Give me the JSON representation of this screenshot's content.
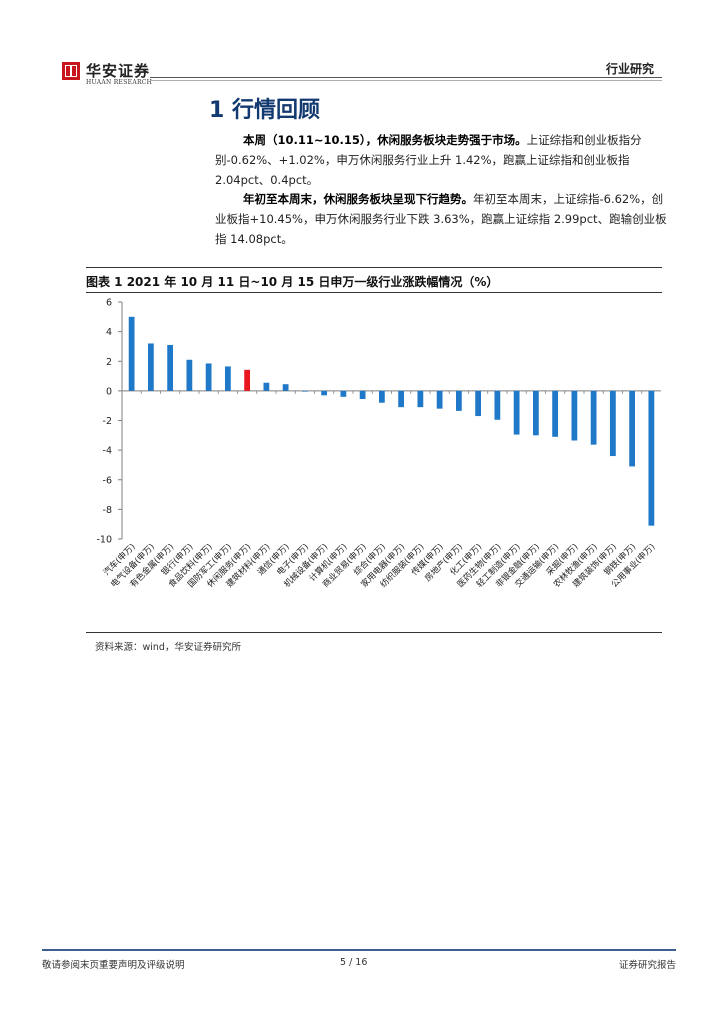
{
  "header": {
    "logo_cn": "华安证券",
    "logo_en": "HUAAN RESEARCH",
    "title": "行业研究"
  },
  "section": {
    "title": "1 行情回顾"
  },
  "paragraphs": [
    {
      "bold": "本周（10.11~10.15），休闲服务板块走势强于市场。",
      "text": "上证综指和创业板指分别-0.62%、+1.02%，申万休闲服务行业上升 1.42%，跑赢上证综指和创业板指 2.04pct、0.4pct。"
    },
    {
      "bold": "年初至本周末，休闲服务板块呈现下行趋势。",
      "text": "年初至本周末，上证综指-6.62%，创业板指+10.45%，申万休闲服务行业下跌 3.63%，跑赢上证综指 2.99pct、跑输创业板指 14.08pct。"
    }
  ],
  "figure": {
    "title": "图表 1 2021 年 10 月 11 日~10 月 15 日申万一级行业涨跌幅情况（%）",
    "source": "资料来源：wind，华安证券研究所"
  },
  "chart_data": {
    "type": "bar",
    "title": "2021 年 10 月 11 日~10 月 15 日申万一级行业涨跌幅情况（%）",
    "categories": [
      "汽车(申万)",
      "电气设备(申万)",
      "有色金属(申万)",
      "银行(申万)",
      "食品饮料(申万)",
      "国防军工(申万)",
      "休闲服务(申万)",
      "建筑材料(申万)",
      "通信(申万)",
      "电子(申万)",
      "机械设备(申万)",
      "计算机(申万)",
      "商业贸易(申万)",
      "综合(申万)",
      "家用电器(申万)",
      "纺织服装(申万)",
      "传媒(申万)",
      "房地产(申万)",
      "化工(申万)",
      "医药生物(申万)",
      "轻工制造(申万)",
      "非银金融(申万)",
      "交通运输(申万)",
      "采掘(申万)",
      "农林牧渔(申万)",
      "建筑装饰(申万)",
      "钢铁(申万)",
      "公用事业(申万)"
    ],
    "values": [
      5.0,
      3.2,
      3.1,
      2.1,
      1.85,
      1.65,
      1.42,
      0.55,
      0.45,
      -0.05,
      -0.3,
      -0.4,
      -0.55,
      -0.8,
      -1.1,
      -1.1,
      -1.2,
      -1.35,
      -1.7,
      -1.95,
      -2.95,
      -3.0,
      -3.1,
      -3.35,
      -3.63,
      -4.4,
      -5.1,
      -9.1
    ],
    "highlight_index": 6,
    "ylim": [
      -10,
      6
    ],
    "yticks": [
      6,
      4,
      2,
      0,
      -2,
      -4,
      -6,
      -8,
      -10
    ],
    "xlabel": "",
    "ylabel": "",
    "grid": false,
    "colors": {
      "bar": "#1f78c8",
      "highlight": "#e8181e",
      "axis": "#7f7f7f"
    }
  },
  "footer": {
    "left": "敬请参阅末页重要声明及评级说明",
    "page": "5 / 16",
    "right": "证券研究报告"
  }
}
